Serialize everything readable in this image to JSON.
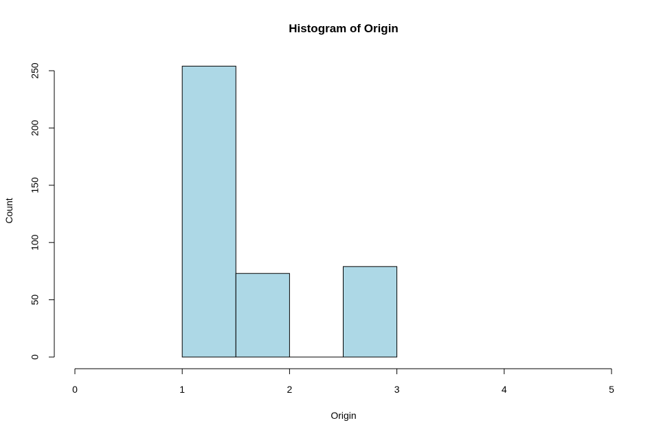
{
  "chart_data": {
    "type": "bar",
    "title": "Histogram of Origin",
    "xlabel": "Origin",
    "ylabel": "Count",
    "bins": [
      {
        "start": 1.0,
        "end": 1.5,
        "count": 254
      },
      {
        "start": 1.5,
        "end": 2.0,
        "count": 73
      },
      {
        "start": 2.0,
        "end": 2.5,
        "count": 0
      },
      {
        "start": 2.5,
        "end": 3.0,
        "count": 79
      }
    ],
    "xlim": [
      0,
      5
    ],
    "ylim": [
      0,
      250
    ],
    "x_ticks": [
      "0",
      "1",
      "2",
      "3",
      "4",
      "5"
    ],
    "y_ticks": [
      "0",
      "50",
      "100",
      "150",
      "200",
      "250"
    ],
    "grid": false,
    "bar_color": "#add8e6",
    "edge_color": "#000000"
  }
}
